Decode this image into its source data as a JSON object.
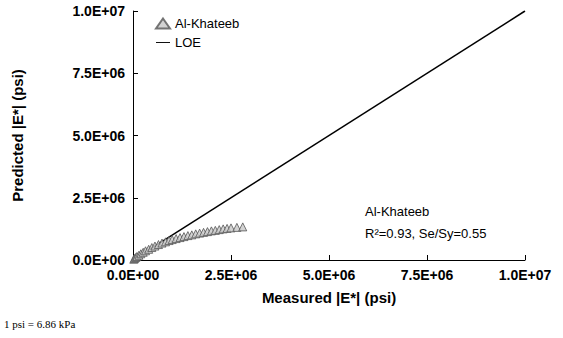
{
  "chart_data": {
    "type": "scatter",
    "x_label": "Measured |E*| (psi)",
    "y_label": "Predicted |E*| (psi)",
    "xlim": [
      0,
      10000000
    ],
    "ylim": [
      0,
      10000000
    ],
    "xticks": [
      {
        "value": 0,
        "label": "0.0E+00"
      },
      {
        "value": 2500000,
        "label": "2.5E+06"
      },
      {
        "value": 5000000,
        "label": "5.0E+06"
      },
      {
        "value": 7500000,
        "label": "7.5E+06"
      },
      {
        "value": 10000000,
        "label": "1.0E+07"
      }
    ],
    "yticks": [
      {
        "value": 0,
        "label": "0.0E+00"
      },
      {
        "value": 2500000,
        "label": "2.5E+06"
      },
      {
        "value": 5000000,
        "label": "5.0E+06"
      },
      {
        "value": 7500000,
        "label": "7.5E+06"
      },
      {
        "value": 10000000,
        "label": "1.0E+07"
      }
    ],
    "grid": false,
    "legend": "upper left",
    "series": [
      {
        "name": "Al-Khateeb",
        "type": "scatter",
        "marker": "triangle",
        "color": "#c8c8c8",
        "x": [
          20000,
          40000,
          70000,
          100000,
          150000,
          200000,
          260000,
          320000,
          400000,
          480000,
          560000,
          650000,
          740000,
          830000,
          920000,
          1000000,
          1100000,
          1200000,
          1300000,
          1400000,
          1500000,
          1600000,
          1700000,
          1800000,
          1900000,
          2000000,
          2100000,
          2200000,
          2300000,
          2400000,
          2500000,
          2650000,
          2800000
        ],
        "values": [
          30000,
          60000,
          100000,
          140000,
          190000,
          250000,
          310000,
          370000,
          430000,
          500000,
          560000,
          620000,
          680000,
          730000,
          780000,
          820000,
          860000,
          900000,
          940000,
          980000,
          1010000,
          1050000,
          1080000,
          1110000,
          1140000,
          1170000,
          1190000,
          1220000,
          1250000,
          1270000,
          1290000,
          1310000,
          1330000
        ]
      },
      {
        "name": "LOE",
        "type": "line",
        "line_style": "solid",
        "color": "#000000",
        "x": [
          0,
          10000000
        ],
        "values": [
          0,
          10000000
        ]
      }
    ],
    "annotations": [
      "Al-Khateeb",
      "R²=0.93, Se/Sy=0.55"
    ],
    "footnote": "1 psi = 6.86 kPa"
  }
}
